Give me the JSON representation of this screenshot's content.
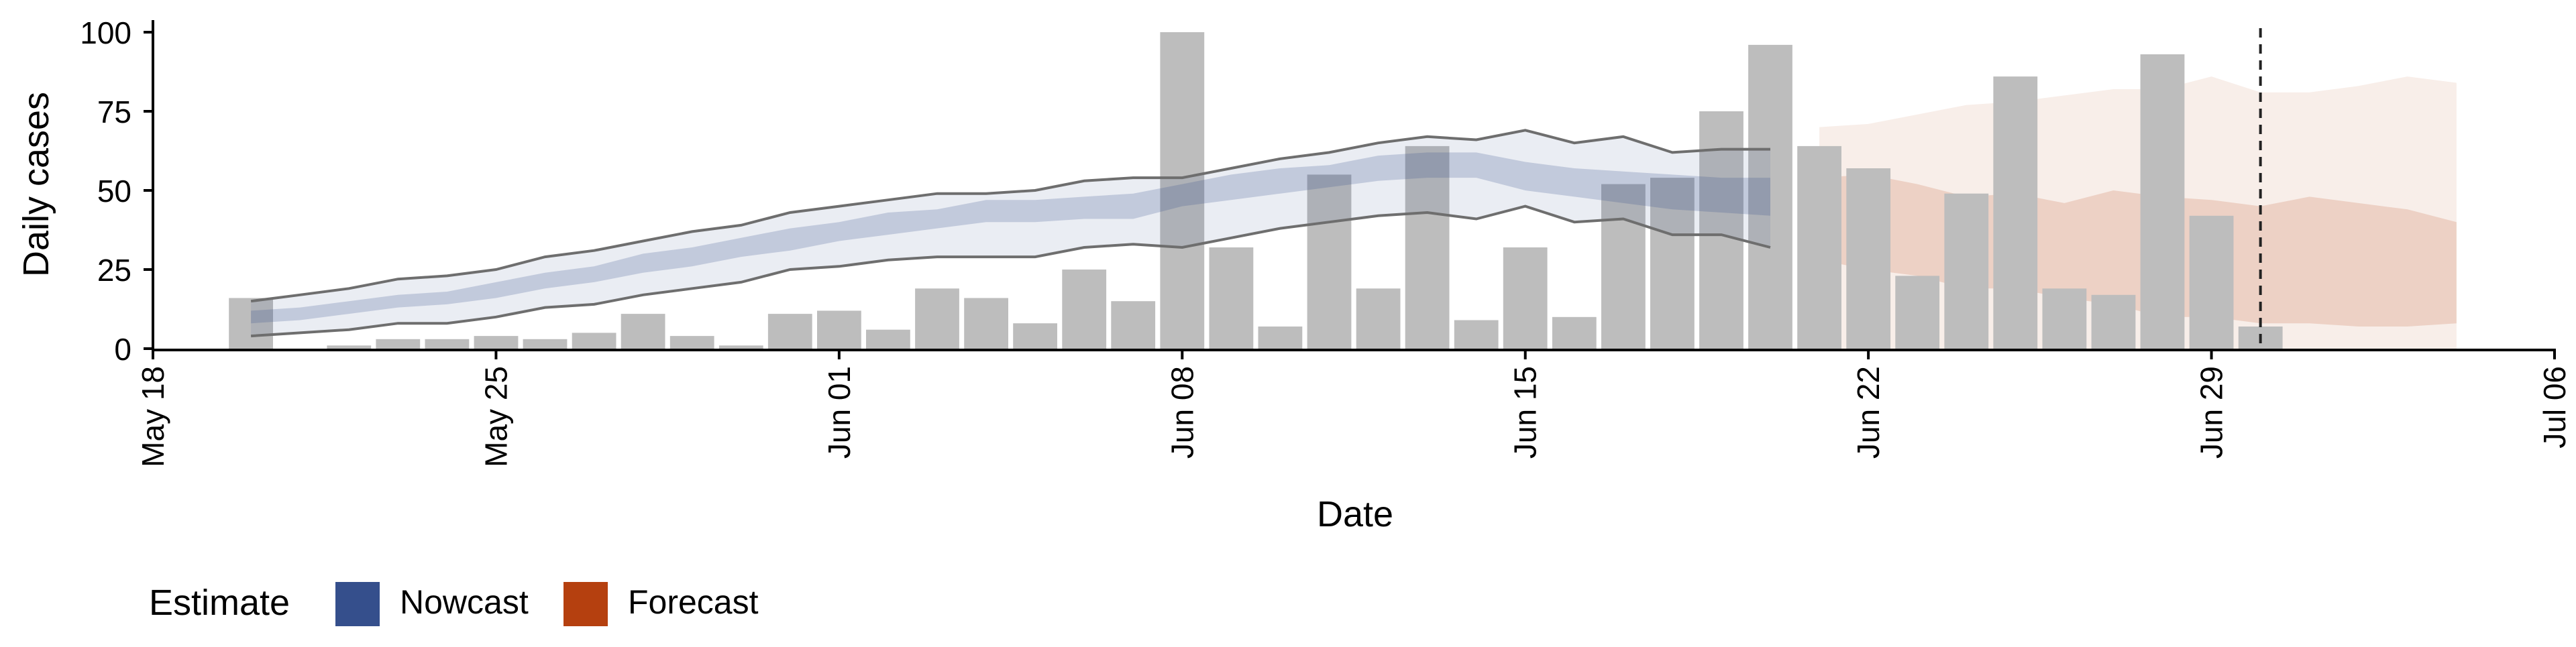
{
  "chart_data": {
    "type": "bar",
    "xlabel": "Date",
    "ylabel": "Daily cases",
    "x_range": [
      "2020-05-18",
      "2020-07-06"
    ],
    "ylim": [
      0,
      100
    ],
    "yticks": [
      0,
      25,
      50,
      75,
      100
    ],
    "xticks": [
      {
        "date": "2020-05-18",
        "label": "May 18"
      },
      {
        "date": "2020-05-25",
        "label": "May 25"
      },
      {
        "date": "2020-06-01",
        "label": "Jun 01"
      },
      {
        "date": "2020-06-08",
        "label": "Jun 08"
      },
      {
        "date": "2020-06-15",
        "label": "Jun 15"
      },
      {
        "date": "2020-06-22",
        "label": "Jun 22"
      },
      {
        "date": "2020-06-29",
        "label": "Jun 29"
      },
      {
        "date": "2020-07-06",
        "label": "Jul 06"
      }
    ],
    "grid": false,
    "legend": {
      "position": "bottom-left",
      "title": "Estimate",
      "entries": [
        {
          "label": "Nowcast",
          "color": "#354F8C"
        },
        {
          "label": "Forecast",
          "color": "#B5400F"
        }
      ]
    },
    "vline_date": "2020-06-30",
    "bars": {
      "name": "Reported cases",
      "color": "#BDBDBD",
      "dates": [
        "2020-05-20",
        "2020-05-21",
        "2020-05-22",
        "2020-05-23",
        "2020-05-24",
        "2020-05-25",
        "2020-05-26",
        "2020-05-27",
        "2020-05-28",
        "2020-05-29",
        "2020-05-30",
        "2020-05-31",
        "2020-06-01",
        "2020-06-02",
        "2020-06-03",
        "2020-06-04",
        "2020-06-05",
        "2020-06-06",
        "2020-06-07",
        "2020-06-08",
        "2020-06-09",
        "2020-06-10",
        "2020-06-11",
        "2020-06-12",
        "2020-06-13",
        "2020-06-14",
        "2020-06-15",
        "2020-06-16",
        "2020-06-17",
        "2020-06-18",
        "2020-06-19",
        "2020-06-20",
        "2020-06-21",
        "2020-06-22",
        "2020-06-23",
        "2020-06-24",
        "2020-06-25",
        "2020-06-26",
        "2020-06-27",
        "2020-06-28",
        "2020-06-29",
        "2020-06-30"
      ],
      "values": [
        16,
        0,
        1,
        3,
        3,
        4,
        3,
        5,
        11,
        4,
        1,
        11,
        12,
        6,
        19,
        16,
        8,
        25,
        15,
        100,
        32,
        7,
        55,
        19,
        64,
        9,
        32,
        10,
        52,
        54,
        75,
        96,
        64,
        57,
        23,
        49,
        86,
        19,
        17,
        93,
        42,
        7
      ]
    },
    "nowcast": {
      "name": "Nowcast",
      "color": "#354F8C",
      "dates": [
        "2020-05-20",
        "2020-05-21",
        "2020-05-22",
        "2020-05-23",
        "2020-05-24",
        "2020-05-25",
        "2020-05-26",
        "2020-05-27",
        "2020-05-28",
        "2020-05-29",
        "2020-05-30",
        "2020-05-31",
        "2020-06-01",
        "2020-06-02",
        "2020-06-03",
        "2020-06-04",
        "2020-06-05",
        "2020-06-06",
        "2020-06-07",
        "2020-06-08",
        "2020-06-09",
        "2020-06-10",
        "2020-06-11",
        "2020-06-12",
        "2020-06-13",
        "2020-06-14",
        "2020-06-15",
        "2020-06-16",
        "2020-06-17",
        "2020-06-18",
        "2020-06-19",
        "2020-06-20"
      ],
      "outer_lower": [
        4,
        5,
        6,
        8,
        8,
        10,
        13,
        14,
        17,
        19,
        21,
        25,
        26,
        28,
        29,
        29,
        29,
        32,
        33,
        32,
        35,
        38,
        40,
        42,
        43,
        41,
        45,
        40,
        41,
        36,
        36,
        32
      ],
      "outer_upper": [
        15,
        17,
        19,
        22,
        23,
        25,
        29,
        31,
        34,
        37,
        39,
        43,
        45,
        47,
        49,
        49,
        50,
        53,
        54,
        54,
        57,
        60,
        62,
        65,
        67,
        66,
        69,
        65,
        67,
        62,
        63,
        63
      ],
      "inner_lower": [
        8,
        9,
        11,
        13,
        14,
        16,
        19,
        21,
        24,
        26,
        29,
        31,
        34,
        36,
        38,
        40,
        40,
        41,
        41,
        45,
        47,
        49,
        51,
        53,
        54,
        54,
        50,
        48,
        46,
        44,
        43,
        42
      ],
      "inner_upper": [
        12,
        13,
        15,
        17,
        18,
        21,
        24,
        26,
        30,
        32,
        35,
        38,
        40,
        43,
        44,
        47,
        47,
        48,
        49,
        52,
        55,
        57,
        58,
        61,
        62,
        62,
        59,
        57,
        56,
        55,
        54,
        54
      ]
    },
    "forecast": {
      "name": "Forecast",
      "color": "#B5400F",
      "dates": [
        "2020-06-21",
        "2020-06-22",
        "2020-06-23",
        "2020-06-24",
        "2020-06-25",
        "2020-06-26",
        "2020-06-27",
        "2020-06-28",
        "2020-06-29",
        "2020-06-30",
        "2020-07-01",
        "2020-07-02",
        "2020-07-03",
        "2020-07-04"
      ],
      "outer_lower": [
        0,
        0,
        0,
        0,
        0,
        0,
        0,
        0,
        0,
        0,
        0,
        0,
        0,
        0
      ],
      "outer_upper": [
        70,
        71,
        74,
        77,
        78,
        80,
        82,
        82,
        86,
        81,
        81,
        83,
        86,
        84
      ],
      "inner_lower": [
        28,
        25,
        23,
        19,
        19,
        16,
        14,
        10,
        10,
        8,
        8,
        7,
        7,
        8
      ],
      "inner_upper": [
        54,
        55,
        52,
        48,
        49,
        46,
        50,
        48,
        47,
        45,
        48,
        46,
        44,
        40
      ]
    }
  }
}
